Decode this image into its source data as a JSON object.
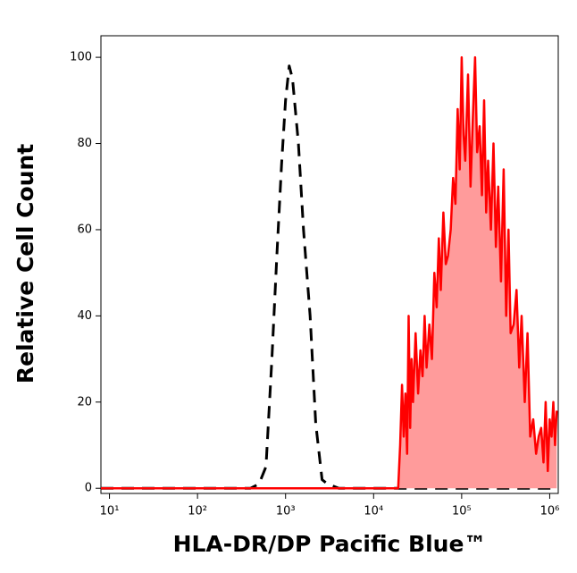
{
  "chart_data": {
    "type": "histogram-overlay",
    "x_label": "HLA-DR/DP Pacific Blue™",
    "y_label": "Relative Cell Count",
    "x_scale": "log",
    "xlim": [
      8,
      1250000
    ],
    "ylim": [
      -1.2,
      105
    ],
    "xticks": [
      {
        "value": 10,
        "label": "10¹"
      },
      {
        "value": 100,
        "label": "10²"
      },
      {
        "value": 1000,
        "label": "10³"
      },
      {
        "value": 10000,
        "label": "10⁴"
      },
      {
        "value": 100000,
        "label": "10⁵"
      },
      {
        "value": 1000000,
        "label": "10⁶"
      }
    ],
    "yticks": [
      0,
      20,
      40,
      60,
      80,
      100
    ],
    "series": [
      {
        "color": "#000000",
        "dash": true,
        "x": [
          8,
          100,
          400,
          500,
          600,
          700,
          800,
          900,
          1000,
          1100,
          1200,
          1400,
          1600,
          1900,
          2200,
          2600,
          3000,
          4000,
          100000,
          1200000
        ],
        "values": [
          0,
          0,
          0,
          1,
          5,
          30,
          55,
          75,
          90,
          98,
          95,
          80,
          60,
          40,
          15,
          2,
          1,
          0,
          0,
          0
        ]
      },
      {
        "color": "#ff0000",
        "fill": "#ff9b9b",
        "x": [
          8,
          100,
          1000,
          10000,
          19000,
          20000,
          21000,
          22000,
          23000,
          24000,
          25000,
          26000,
          27000,
          28000,
          30000,
          32000,
          34000,
          36000,
          38000,
          40000,
          43000,
          46000,
          49000,
          52000,
          55000,
          58000,
          62000,
          66000,
          70000,
          75000,
          80000,
          85000,
          90000,
          95000,
          100000,
          105000,
          110000,
          118000,
          126000,
          134000,
          142000,
          150000,
          160000,
          170000,
          180000,
          190000,
          200000,
          215000,
          230000,
          245000,
          260000,
          280000,
          300000,
          320000,
          340000,
          360000,
          390000,
          420000,
          450000,
          480000,
          520000,
          560000,
          600000,
          650000,
          700000,
          750000,
          800000,
          850000,
          900000,
          950000,
          1000000,
          1050000,
          1100000,
          1150000,
          1200000
        ],
        "values": [
          0,
          0,
          0,
          0,
          0,
          10,
          24,
          12,
          22,
          8,
          40,
          14,
          30,
          20,
          36,
          22,
          32,
          26,
          40,
          28,
          38,
          30,
          50,
          42,
          58,
          46,
          64,
          52,
          54,
          60,
          72,
          66,
          88,
          74,
          100,
          82,
          76,
          96,
          70,
          86,
          100,
          78,
          84,
          68,
          90,
          64,
          76,
          60,
          80,
          56,
          70,
          48,
          74,
          40,
          60,
          36,
          38,
          46,
          28,
          40,
          20,
          36,
          12,
          16,
          8,
          12,
          14,
          6,
          20,
          4,
          16,
          12,
          20,
          10,
          18
        ]
      }
    ]
  }
}
